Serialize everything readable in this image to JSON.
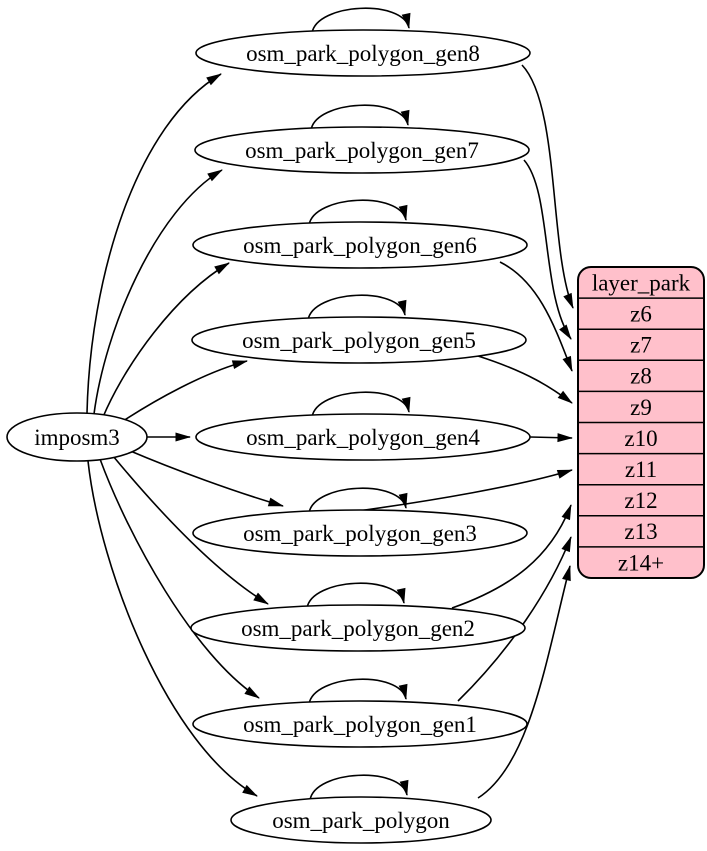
{
  "diagram": {
    "source_node": {
      "id": "imposm3",
      "label": "imposm3"
    },
    "generalized_tables": [
      {
        "id": "osm_park_polygon_gen8",
        "label": "osm_park_polygon_gen8"
      },
      {
        "id": "osm_park_polygon_gen7",
        "label": "osm_park_polygon_gen7"
      },
      {
        "id": "osm_park_polygon_gen6",
        "label": "osm_park_polygon_gen6"
      },
      {
        "id": "osm_park_polygon_gen5",
        "label": "osm_park_polygon_gen5"
      },
      {
        "id": "osm_park_polygon_gen4",
        "label": "osm_park_polygon_gen4"
      },
      {
        "id": "osm_park_polygon_gen3",
        "label": "osm_park_polygon_gen3"
      },
      {
        "id": "osm_park_polygon_gen2",
        "label": "osm_park_polygon_gen2"
      },
      {
        "id": "osm_park_polygon_gen1",
        "label": "osm_park_polygon_gen1"
      },
      {
        "id": "osm_park_polygon",
        "label": "osm_park_polygon"
      }
    ],
    "layer_node": {
      "id": "layer_park",
      "header": "layer_park",
      "zoom_rows": [
        "z6",
        "z7",
        "z8",
        "z9",
        "z10",
        "z11",
        "z12",
        "z13",
        "z14+"
      ],
      "fill_color": "#ffc0cb",
      "border_color": "#000000"
    },
    "edges": {
      "from_source": [
        "osm_park_polygon_gen8",
        "osm_park_polygon_gen7",
        "osm_park_polygon_gen6",
        "osm_park_polygon_gen5",
        "osm_park_polygon_gen4",
        "osm_park_polygon_gen3",
        "osm_park_polygon_gen2",
        "osm_park_polygon_gen1",
        "osm_park_polygon"
      ],
      "self_loops": [
        "osm_park_polygon_gen8",
        "osm_park_polygon_gen7",
        "osm_park_polygon_gen6",
        "osm_park_polygon_gen5",
        "osm_park_polygon_gen4",
        "osm_park_polygon_gen3",
        "osm_park_polygon_gen2",
        "osm_park_polygon_gen1",
        "osm_park_polygon"
      ],
      "to_layer": [
        {
          "from": "osm_park_polygon_gen8",
          "to_row": "z6"
        },
        {
          "from": "osm_park_polygon_gen7",
          "to_row": "z7"
        },
        {
          "from": "osm_park_polygon_gen6",
          "to_row": "z8"
        },
        {
          "from": "osm_park_polygon_gen5",
          "to_row": "z9"
        },
        {
          "from": "osm_park_polygon_gen4",
          "to_row": "z10"
        },
        {
          "from": "osm_park_polygon_gen3",
          "to_row": "z11"
        },
        {
          "from": "osm_park_polygon_gen2",
          "to_row": "z12"
        },
        {
          "from": "osm_park_polygon_gen1",
          "to_row": "z13"
        },
        {
          "from": "osm_park_polygon",
          "to_row": "z14+"
        }
      ]
    }
  }
}
